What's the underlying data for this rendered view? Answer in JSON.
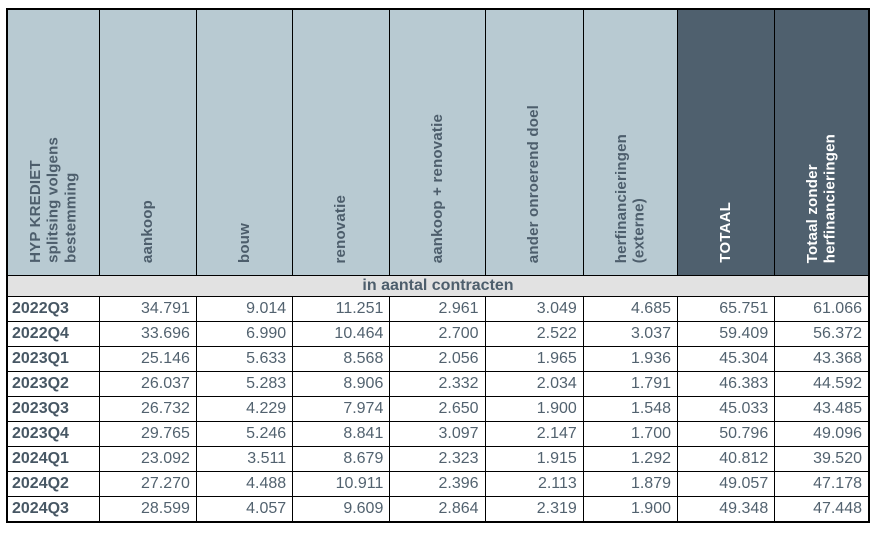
{
  "title": "HYP KREDIET splitsing volgens bestemming",
  "colors": {
    "header_light_bg": "#b8cad2",
    "header_dark_bg": "#4f606e",
    "band_bg": "#e2e2e2",
    "text_slate": "#4d5e6c",
    "text_white": "#ffffff",
    "border": "#000000"
  },
  "table": {
    "columns": [
      {
        "label": "HYP KREDIET\nsplitsing volgens\nbestemming",
        "variant": "light"
      },
      {
        "label": "aankoop",
        "variant": "light"
      },
      {
        "label": "bouw",
        "variant": "light"
      },
      {
        "label": "renovatie",
        "variant": "light"
      },
      {
        "label": "aankoop + renovatie",
        "variant": "light"
      },
      {
        "label": "ander onroerend doel",
        "variant": "light"
      },
      {
        "label": "herfinancieringen\n(externe)",
        "variant": "light"
      },
      {
        "label": "TOTAAL",
        "variant": "dark"
      },
      {
        "label": "Totaal zonder\nherfinancieringen",
        "variant": "dark"
      }
    ],
    "section_label": "in aantal contracten",
    "rows": [
      {
        "period": "2022Q3",
        "values": [
          "34.791",
          "9.014",
          "11.251",
          "2.961",
          "3.049",
          "4.685",
          "65.751",
          "61.066"
        ]
      },
      {
        "period": "2022Q4",
        "values": [
          "33.696",
          "6.990",
          "10.464",
          "2.700",
          "2.522",
          "3.037",
          "59.409",
          "56.372"
        ]
      },
      {
        "period": "2023Q1",
        "values": [
          "25.146",
          "5.633",
          "8.568",
          "2.056",
          "1.965",
          "1.936",
          "45.304",
          "43.368"
        ]
      },
      {
        "period": "2023Q2",
        "values": [
          "26.037",
          "5.283",
          "8.906",
          "2.332",
          "2.034",
          "1.791",
          "46.383",
          "44.592"
        ]
      },
      {
        "period": "2023Q3",
        "values": [
          "26.732",
          "4.229",
          "7.974",
          "2.650",
          "1.900",
          "1.548",
          "45.033",
          "43.485"
        ]
      },
      {
        "period": "2023Q4",
        "values": [
          "29.765",
          "5.246",
          "8.841",
          "3.097",
          "2.147",
          "1.700",
          "50.796",
          "49.096"
        ]
      },
      {
        "period": "2024Q1",
        "values": [
          "23.092",
          "3.511",
          "8.679",
          "2.323",
          "1.915",
          "1.292",
          "40.812",
          "39.520"
        ]
      },
      {
        "period": "2024Q2",
        "values": [
          "27.270",
          "4.488",
          "10.911",
          "2.396",
          "2.113",
          "1.879",
          "49.057",
          "47.178"
        ]
      },
      {
        "period": "2024Q3",
        "values": [
          "28.599",
          "4.057",
          "9.609",
          "2.864",
          "2.319",
          "1.900",
          "49.348",
          "47.448"
        ]
      }
    ]
  },
  "chart_data": {
    "type": "table",
    "title": "HYP KREDIET splitsing volgens bestemming",
    "unit_row": "in aantal contracten",
    "categories": [
      "2022Q3",
      "2022Q4",
      "2023Q1",
      "2023Q2",
      "2023Q3",
      "2023Q4",
      "2024Q1",
      "2024Q2",
      "2024Q3"
    ],
    "series": [
      {
        "name": "aankoop",
        "values": [
          34791,
          33696,
          25146,
          26037,
          26732,
          29765,
          23092,
          27270,
          28599
        ]
      },
      {
        "name": "bouw",
        "values": [
          9014,
          6990,
          5633,
          5283,
          4229,
          5246,
          3511,
          4488,
          4057
        ]
      },
      {
        "name": "renovatie",
        "values": [
          11251,
          10464,
          8568,
          8906,
          7974,
          8841,
          8679,
          10911,
          9609
        ]
      },
      {
        "name": "aankoop + renovatie",
        "values": [
          2961,
          2700,
          2056,
          2332,
          2650,
          3097,
          2323,
          2396,
          2864
        ]
      },
      {
        "name": "ander onroerend doel",
        "values": [
          3049,
          2522,
          1965,
          2034,
          1900,
          2147,
          1915,
          2113,
          2319
        ]
      },
      {
        "name": "herfinancieringen (externe)",
        "values": [
          4685,
          3037,
          1936,
          1791,
          1548,
          1700,
          1292,
          1879,
          1900
        ]
      },
      {
        "name": "TOTAAL",
        "values": [
          65751,
          59409,
          45304,
          46383,
          45033,
          50796,
          40812,
          49057,
          49348
        ]
      },
      {
        "name": "Totaal zonder herfinancieringen",
        "values": [
          61066,
          56372,
          43368,
          44592,
          43485,
          49096,
          39520,
          47178,
          47448
        ]
      }
    ]
  }
}
